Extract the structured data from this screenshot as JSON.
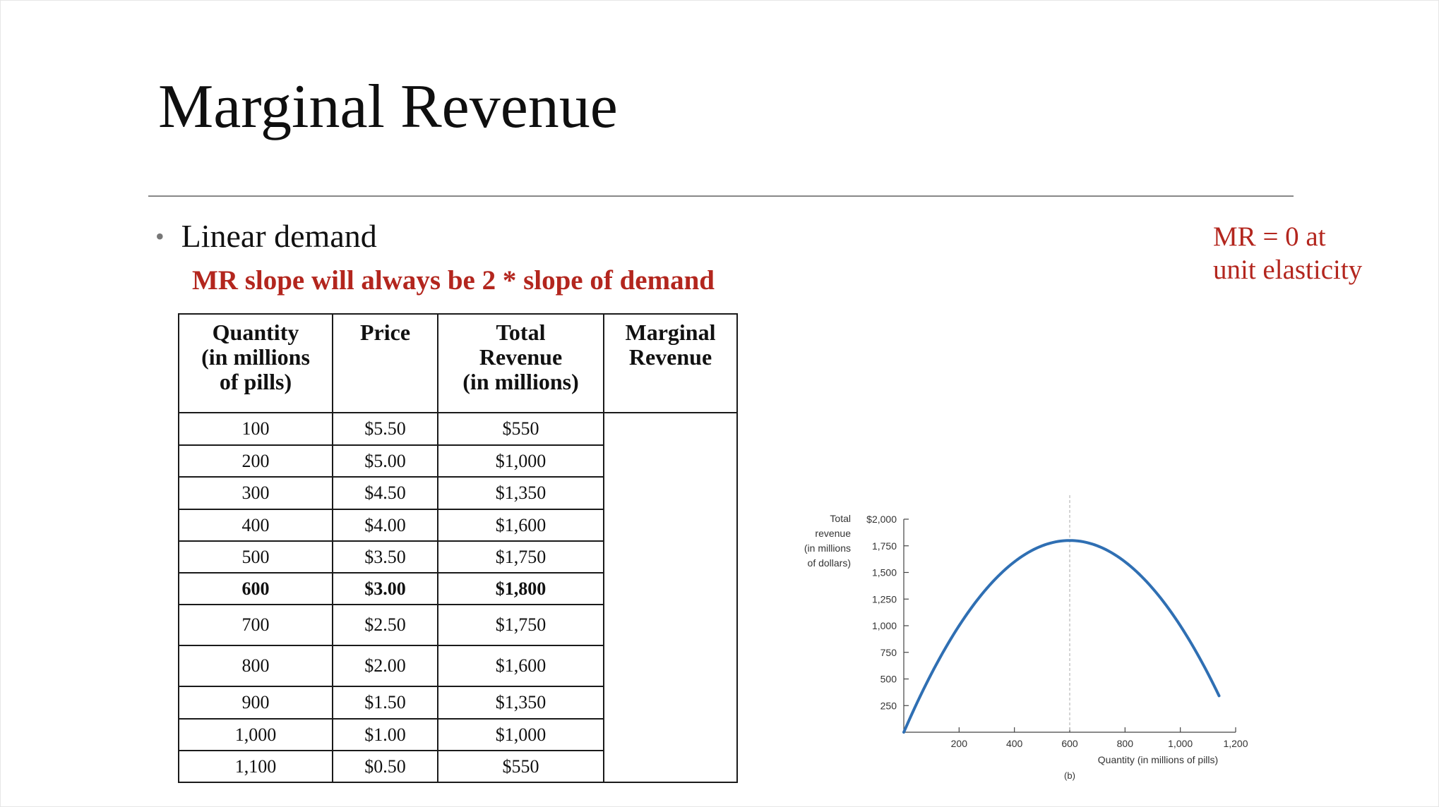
{
  "slide": {
    "title": "Marginal Revenue",
    "bullet": "Linear demand",
    "subpoint": "MR slope will always be 2 * slope of  demand",
    "side_note_lines": [
      "MR = 0 at",
      "unit elasticity"
    ],
    "accent_color": "#b3261e"
  },
  "table": {
    "headers": [
      [
        "Quantity",
        "(in millions",
        "of pills)"
      ],
      [
        "Price"
      ],
      [
        "Total",
        "Revenue",
        "(in millions)"
      ],
      [
        "Marginal",
        "Revenue"
      ]
    ],
    "rows": [
      {
        "quantity": "100",
        "price": "$5.50",
        "total_revenue": "$550",
        "bold": false
      },
      {
        "quantity": "200",
        "price": "$5.00",
        "total_revenue": "$1,000",
        "bold": false
      },
      {
        "quantity": "300",
        "price": "$4.50",
        "total_revenue": "$1,350",
        "bold": false
      },
      {
        "quantity": "400",
        "price": "$4.00",
        "total_revenue": "$1,600",
        "bold": false
      },
      {
        "quantity": "500",
        "price": "$3.50",
        "total_revenue": "$1,750",
        "bold": false
      },
      {
        "quantity": "600",
        "price": "$3.00",
        "total_revenue": "$1,800",
        "bold": true
      },
      {
        "quantity": "700",
        "price": "$2.50",
        "total_revenue": "$1,750",
        "bold": false
      },
      {
        "quantity": "800",
        "price": "$2.00",
        "total_revenue": "$1,600",
        "bold": false
      },
      {
        "quantity": "900",
        "price": "$1.50",
        "total_revenue": "$1,350",
        "bold": false
      },
      {
        "quantity": "1,000",
        "price": "$1.00",
        "total_revenue": "$1,000",
        "bold": false
      },
      {
        "quantity": "1,100",
        "price": "$0.50",
        "total_revenue": "$550",
        "bold": false
      }
    ]
  },
  "chart_data": {
    "type": "line",
    "ylabel_lines": [
      "Total",
      "revenue",
      "(in millions",
      "of dollars)"
    ],
    "xlabel": "Quantity (in millions of pills)",
    "caption": "(b)",
    "x_ticks": [
      200,
      400,
      600,
      800,
      1000,
      1200
    ],
    "x_tick_labels": [
      "200",
      "400",
      "600",
      "800",
      "1,000",
      "1,200"
    ],
    "y_ticks": [
      250,
      500,
      750,
      1000,
      1250,
      1500,
      1750,
      2000
    ],
    "y_tick_labels": [
      "250",
      "500",
      "750",
      "1,000",
      "1,250",
      "1,500",
      "1,750",
      "$2,000"
    ],
    "xlim": [
      0,
      1200
    ],
    "ylim": [
      0,
      2000
    ],
    "series": [
      {
        "x": [
          0,
          100,
          200,
          300,
          400,
          500,
          600,
          700,
          800,
          900,
          1000,
          1100,
          1200
        ],
        "y": [
          0,
          550,
          1000,
          1350,
          1600,
          1750,
          1800,
          1750,
          1600,
          1350,
          1000,
          550,
          0
        ],
        "color": "#2f6fb3"
      }
    ],
    "peak_x": 600,
    "grid": false
  }
}
